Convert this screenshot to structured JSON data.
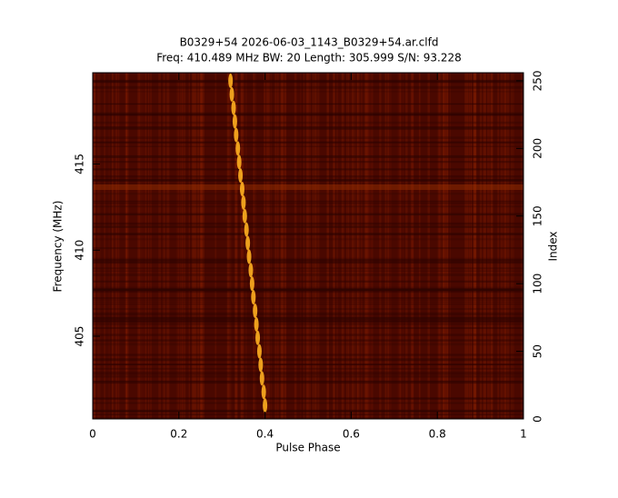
{
  "chart_data": {
    "type": "scatter",
    "title": "B0329+54 2026-06-03_1143_B0329+54.ar.clfd",
    "subtitle": "Freq: 410.489 MHz BW: 20 Length: 305.999 S/N: 93.228",
    "x_label": "Pulse Phase",
    "y_label": "Frequency (MHz)",
    "y2_label": "Index",
    "xlim": [
      0,
      1
    ],
    "xticks": [
      0,
      0.2,
      0.4,
      0.6,
      0.8,
      1
    ],
    "ylim": [
      400.2,
      420.3
    ],
    "yticks": [
      405,
      410,
      415
    ],
    "y2lim": [
      0,
      256
    ],
    "y2ticks": [
      0,
      50,
      100,
      150,
      200,
      250
    ],
    "background_color": "#4a0800",
    "color": "#ffb020",
    "series": [
      {
        "axis": "y2",
        "color": "#ffb020",
        "x": [
          0.4,
          0.397,
          0.393,
          0.39,
          0.387,
          0.383,
          0.38,
          0.377,
          0.373,
          0.37,
          0.367,
          0.363,
          0.36,
          0.357,
          0.353,
          0.35,
          0.347,
          0.343,
          0.34,
          0.337,
          0.333,
          0.33,
          0.327,
          0.323,
          0.32
        ],
        "values": [
          10,
          20,
          30,
          40,
          50,
          60,
          70,
          80,
          90,
          100,
          110,
          120,
          130,
          140,
          150,
          160,
          170,
          180,
          190,
          200,
          210,
          220,
          230,
          240,
          250
        ]
      }
    ]
  }
}
